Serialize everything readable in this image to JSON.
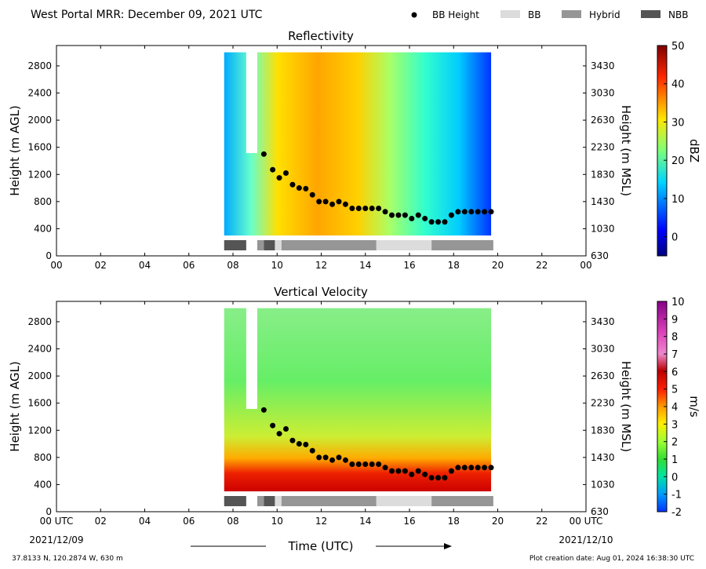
{
  "figure": {
    "title": "West Portal MRR:  December 09, 2021 UTC",
    "xlabel": "Time (UTC)",
    "start_date": "2021/12/09",
    "end_date": "2021/12/10",
    "location": "37.8133 N, 120.2874 W, 630 m",
    "creation": "Plot creation date: Aug 01, 2024 16:38:30 UTC"
  },
  "legend": [
    {
      "label": "BB Height",
      "kind": "dot",
      "color": "#000000"
    },
    {
      "label": "BB",
      "kind": "box",
      "color": "#dcdcdc"
    },
    {
      "label": "Hybrid",
      "kind": "box",
      "color": "#969696"
    },
    {
      "label": "NBB",
      "kind": "box",
      "color": "#555555"
    }
  ],
  "chart_data": [
    {
      "type": "heatmap",
      "title": "Reflectivity",
      "ylabel": "Height (m AGL)",
      "ylabel_right": "Height (m MSL)",
      "xlim": [
        0,
        24
      ],
      "ylim": [
        0,
        3100
      ],
      "x_ticks": [
        "00",
        "02",
        "04",
        "06",
        "08",
        "10",
        "12",
        "14",
        "16",
        "18",
        "20",
        "22",
        "00"
      ],
      "y_ticks": [
        0,
        400,
        800,
        1200,
        1600,
        2000,
        2400,
        2800
      ],
      "y_right_ticks": [
        630,
        1030,
        1430,
        1830,
        2230,
        2630,
        3030,
        3430
      ],
      "colorbar": {
        "label": "dBZ",
        "min": -5,
        "max": 50,
        "ticks": [
          0,
          10,
          20,
          30,
          40,
          50
        ],
        "colormap": "jet"
      },
      "data_extent_hours": [
        7.6,
        19.7
      ],
      "data_top_m": 3000,
      "data_bottom_m": 300
    },
    {
      "type": "heatmap",
      "title": "Vertical Velocity",
      "ylabel": "Height (m AGL)",
      "ylabel_right": "Height (m MSL)",
      "xlim": [
        0,
        24
      ],
      "ylim": [
        0,
        3100
      ],
      "x_ticks": [
        "00 UTC",
        "02",
        "04",
        "06",
        "08",
        "10",
        "12",
        "14",
        "16",
        "18",
        "20",
        "22",
        "00 UTC"
      ],
      "y_ticks": [
        0,
        400,
        800,
        1200,
        1600,
        2000,
        2400,
        2800
      ],
      "y_right_ticks": [
        630,
        1030,
        1430,
        1830,
        2230,
        2630,
        3030,
        3430
      ],
      "colorbar": {
        "label": "m/s",
        "min": -2,
        "max": 10,
        "ticks": [
          -2,
          -1,
          0,
          1,
          2,
          3,
          4,
          5,
          6,
          7,
          8,
          9,
          10
        ],
        "colormap": "nipy_spectral"
      },
      "data_extent_hours": [
        7.6,
        19.7
      ],
      "data_top_m": 3000,
      "data_bottom_m": 300
    }
  ],
  "bb_height": {
    "x": [
      9.4,
      9.8,
      10.1,
      10.4,
      10.7,
      11.0,
      11.3,
      11.6,
      11.9,
      12.2,
      12.5,
      12.8,
      13.1,
      13.4,
      13.7,
      14.0,
      14.3,
      14.6,
      14.9,
      15.2,
      15.5,
      15.8,
      16.1,
      16.4,
      16.7,
      17.0,
      17.3,
      17.6,
      17.9,
      18.2,
      18.5,
      18.8,
      19.1,
      19.4,
      19.7
    ],
    "y": [
      1500,
      1270,
      1150,
      1220,
      1050,
      1000,
      990,
      900,
      800,
      800,
      760,
      800,
      760,
      700,
      700,
      700,
      700,
      700,
      650,
      600,
      600,
      600,
      550,
      600,
      550,
      500,
      500,
      500,
      600,
      650,
      650,
      650,
      650,
      650,
      650
    ]
  },
  "classification": [
    {
      "start": 7.6,
      "end": 8.6,
      "type": "NBB"
    },
    {
      "start": 9.1,
      "end": 9.4,
      "type": "Hybrid"
    },
    {
      "start": 9.4,
      "end": 9.9,
      "type": "NBB"
    },
    {
      "start": 9.9,
      "end": 10.2,
      "type": "BB"
    },
    {
      "start": 10.2,
      "end": 14.5,
      "type": "Hybrid"
    },
    {
      "start": 14.5,
      "end": 17.0,
      "type": "BB"
    },
    {
      "start": 17.0,
      "end": 19.8,
      "type": "Hybrid"
    }
  ]
}
